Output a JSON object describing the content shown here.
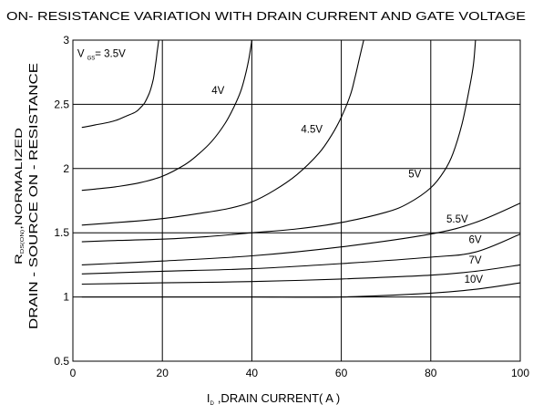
{
  "chart_data": {
    "type": "line",
    "title": "ON- RESISTANCE VARIATION WITH DRAIN CURRENT AND GATE VOLTAGE",
    "xlabel_sym": "I",
    "xlabel_sub": "D",
    "xlabel_text": ",DRAIN CURRENT( A )",
    "ylabel_line1_sym": "R",
    "ylabel_line1_sub": "DS(ON)",
    "ylabel_line1_text": ",NORMALIZED",
    "ylabel_line2": "DRAIN - SOURCE ON - RESISTANCE",
    "xlim": [
      0,
      100
    ],
    "ylim": [
      0.5,
      3
    ],
    "xticks": [
      0,
      20,
      40,
      60,
      80,
      100
    ],
    "xtick_labels": [
      "0",
      "20",
      "40",
      "60",
      "80",
      "100"
    ],
    "yticks": [
      0.5,
      1,
      1.5,
      2,
      2.5,
      3
    ],
    "ytick_labels": [
      "0.5",
      "1",
      "1.5",
      "2",
      "2.5",
      "3"
    ],
    "grid": true,
    "line_color": "#000000",
    "series": [
      {
        "name": "V GS= 3.5V",
        "name_sym": "V",
        "name_sub": "GS",
        "name_rest": "= 3.5V",
        "x": [
          2,
          5,
          8,
          10,
          12,
          14,
          15,
          16,
          17,
          17.5,
          18,
          18.3,
          18.6,
          18.8,
          19,
          19.2
        ],
        "y": [
          2.32,
          2.34,
          2.36,
          2.38,
          2.41,
          2.44,
          2.47,
          2.51,
          2.58,
          2.63,
          2.7,
          2.77,
          2.84,
          2.9,
          2.95,
          3.0
        ]
      },
      {
        "name": "4V",
        "x": [
          2,
          5,
          10,
          15,
          20,
          25,
          28,
          31,
          34,
          36,
          37.5,
          38.5,
          39.2,
          39.7,
          40
        ],
        "y": [
          1.83,
          1.84,
          1.86,
          1.89,
          1.94,
          2.03,
          2.11,
          2.21,
          2.35,
          2.48,
          2.6,
          2.72,
          2.83,
          2.93,
          3.0
        ]
      },
      {
        "name": "4.5V",
        "x": [
          2,
          10,
          20,
          30,
          35,
          40,
          45,
          50,
          55,
          58,
          60,
          62,
          63,
          64,
          65
        ],
        "y": [
          1.56,
          1.58,
          1.61,
          1.66,
          1.69,
          1.74,
          1.83,
          1.95,
          2.12,
          2.27,
          2.4,
          2.57,
          2.7,
          2.85,
          3.0
        ]
      },
      {
        "name": "5V",
        "x": [
          2,
          10,
          20,
          30,
          40,
          50,
          60,
          70,
          75,
          80,
          83,
          85,
          87,
          88.5,
          89.5,
          90
        ],
        "y": [
          1.43,
          1.44,
          1.45,
          1.47,
          1.5,
          1.53,
          1.58,
          1.66,
          1.73,
          1.85,
          1.98,
          2.12,
          2.35,
          2.6,
          2.8,
          3.0
        ]
      },
      {
        "name": "5.5V",
        "x": [
          2,
          20,
          40,
          60,
          80,
          90,
          100
        ],
        "y": [
          1.25,
          1.28,
          1.32,
          1.39,
          1.49,
          1.58,
          1.73
        ]
      },
      {
        "name": "6V",
        "x": [
          2,
          20,
          40,
          60,
          80,
          90,
          100
        ],
        "y": [
          1.18,
          1.2,
          1.22,
          1.26,
          1.31,
          1.35,
          1.49
        ]
      },
      {
        "name": "7V",
        "x": [
          2,
          20,
          40,
          60,
          80,
          90,
          100
        ],
        "y": [
          1.1,
          1.11,
          1.12,
          1.14,
          1.17,
          1.2,
          1.25
        ]
      },
      {
        "name": "10V",
        "x": [
          2,
          20,
          40,
          60,
          80,
          90,
          100
        ],
        "y": [
          1.0,
          1.0,
          1.0,
          1.0,
          1.03,
          1.06,
          1.11
        ]
      }
    ],
    "annotations": [
      {
        "series": 0,
        "x": 1,
        "y": 2.87
      },
      {
        "series": 1,
        "x": 31,
        "y": 2.58
      },
      {
        "series": 2,
        "x": 51,
        "y": 2.28
      },
      {
        "series": 3,
        "x": 75,
        "y": 1.93
      },
      {
        "series": 4,
        "x": 83.5,
        "y": 1.58
      },
      {
        "series": 5,
        "x": 88.5,
        "y": 1.42
      },
      {
        "series": 6,
        "x": 88.5,
        "y": 1.26
      },
      {
        "series": 7,
        "x": 87.5,
        "y": 1.11
      }
    ]
  }
}
